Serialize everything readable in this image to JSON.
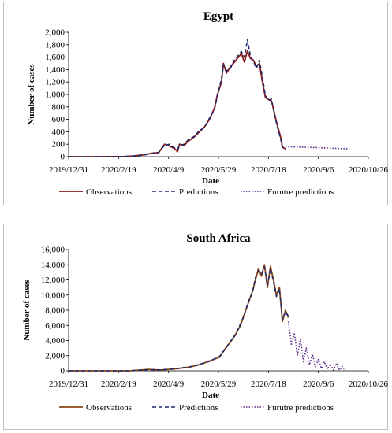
{
  "chart_data": [
    {
      "type": "line",
      "title": "Egypt",
      "xlabel": "Date",
      "ylabel": "Number of cases",
      "ylim": [
        0,
        2000
      ],
      "yticks": [
        "0",
        "200",
        "400",
        "600",
        "800",
        "1,000",
        "1,200",
        "1,400",
        "1,600",
        "1,800",
        "2,000"
      ],
      "xticks": [
        "2019/12/31",
        "2020/2/19",
        "2020/4/9",
        "2020/5/29",
        "2020/7/18",
        "2020/9/6",
        "2020/10/26"
      ],
      "xrange": [
        "2019-12-31",
        "2020-10-26"
      ],
      "grid": false,
      "legend_position": "bottom",
      "series": [
        {
          "name": "Observations",
          "color": "#8b1a1a",
          "style": "solid",
          "x": [
            "2019-12-31",
            "2020-01-31",
            "2020-02-25",
            "2020-03-05",
            "2020-03-15",
            "2020-03-25",
            "2020-03-30",
            "2020-04-05",
            "2020-04-10",
            "2020-04-15",
            "2020-04-18",
            "2020-04-20",
            "2020-04-25",
            "2020-04-28",
            "2020-05-05",
            "2020-05-10",
            "2020-05-15",
            "2020-05-20",
            "2020-05-25",
            "2020-05-28",
            "2020-06-01",
            "2020-06-03",
            "2020-06-06",
            "2020-06-10",
            "2020-06-14",
            "2020-06-18",
            "2020-06-21",
            "2020-06-24",
            "2020-06-27",
            "2020-06-30",
            "2020-07-03",
            "2020-07-06",
            "2020-07-09",
            "2020-07-12",
            "2020-07-15",
            "2020-07-18",
            "2020-07-21",
            "2020-07-24",
            "2020-07-27",
            "2020-07-30",
            "2020-08-01",
            "2020-08-04"
          ],
          "y": [
            0,
            0,
            2,
            10,
            30,
            60,
            60,
            200,
            170,
            130,
            80,
            200,
            180,
            240,
            320,
            400,
            480,
            600,
            780,
            1000,
            1200,
            1500,
            1340,
            1450,
            1520,
            1600,
            1660,
            1520,
            1700,
            1580,
            1550,
            1450,
            1500,
            1200,
            950,
            920,
            900,
            700,
            500,
            330,
            160,
            120
          ]
        },
        {
          "name": "Predictions",
          "color": "#1f2a6b",
          "style": "dashed",
          "x": [
            "2019-12-31",
            "2020-01-31",
            "2020-02-25",
            "2020-03-05",
            "2020-03-15",
            "2020-03-25",
            "2020-03-30",
            "2020-04-05",
            "2020-04-10",
            "2020-04-15",
            "2020-04-18",
            "2020-04-20",
            "2020-04-25",
            "2020-04-28",
            "2020-05-05",
            "2020-05-10",
            "2020-05-15",
            "2020-05-20",
            "2020-05-25",
            "2020-05-28",
            "2020-06-01",
            "2020-06-03",
            "2020-06-06",
            "2020-06-10",
            "2020-06-14",
            "2020-06-18",
            "2020-06-21",
            "2020-06-24",
            "2020-06-27",
            "2020-06-30",
            "2020-07-03",
            "2020-07-06",
            "2020-07-09",
            "2020-07-12",
            "2020-07-15",
            "2020-07-18",
            "2020-07-21",
            "2020-07-24",
            "2020-07-27",
            "2020-07-30",
            "2020-08-01",
            "2020-08-04"
          ],
          "y": [
            0,
            0,
            2,
            12,
            25,
            55,
            70,
            180,
            200,
            140,
            120,
            180,
            200,
            260,
            330,
            420,
            470,
            620,
            760,
            980,
            1250,
            1480,
            1380,
            1420,
            1560,
            1630,
            1690,
            1600,
            1880,
            1620,
            1530,
            1420,
            1550,
            1280,
            980,
            900,
            930,
            680,
            480,
            300,
            150,
            130
          ]
        },
        {
          "name": "Furutre predictions",
          "color": "#5a2a8a",
          "style": "dotted",
          "x": [
            "2020-08-04",
            "2020-08-20",
            "2020-09-05",
            "2020-09-20",
            "2020-10-05"
          ],
          "y": [
            160,
            155,
            145,
            135,
            125
          ]
        }
      ]
    },
    {
      "type": "line",
      "title": "South Africa",
      "xlabel": "Date",
      "ylabel": "Number of cases",
      "ylim": [
        0,
        16000
      ],
      "yticks": [
        "0",
        "2,000",
        "4,000",
        "6,000",
        "8,000",
        "10,000",
        "12,000",
        "14,000",
        "16,000"
      ],
      "xticks": [
        "2019/12/31",
        "2020/2/19",
        "2020/4/9",
        "2020/5/29",
        "2020/7/18",
        "2020/9/6",
        "2020/10/26"
      ],
      "xrange": [
        "2019-12-31",
        "2020-10-26"
      ],
      "grid": false,
      "legend_position": "bottom",
      "series": [
        {
          "name": "Observations",
          "color": "#8b4513",
          "style": "solid",
          "x": [
            "2019-12-31",
            "2020-03-01",
            "2020-03-20",
            "2020-04-01",
            "2020-04-15",
            "2020-04-30",
            "2020-05-10",
            "2020-05-20",
            "2020-05-30",
            "2020-06-05",
            "2020-06-10",
            "2020-06-15",
            "2020-06-20",
            "2020-06-24",
            "2020-06-28",
            "2020-07-02",
            "2020-07-05",
            "2020-07-08",
            "2020-07-11",
            "2020-07-14",
            "2020-07-17",
            "2020-07-20",
            "2020-07-23",
            "2020-07-26",
            "2020-07-29",
            "2020-08-01",
            "2020-08-04",
            "2020-08-07"
          ],
          "y": [
            0,
            0,
            200,
            100,
            250,
            500,
            800,
            1300,
            1800,
            3000,
            3800,
            4800,
            6000,
            7500,
            9000,
            10500,
            12000,
            13500,
            12500,
            14000,
            11000,
            13800,
            12000,
            10000,
            11000,
            6500,
            8000,
            7000
          ]
        },
        {
          "name": "Predictions",
          "color": "#1f2a6b",
          "style": "dashed",
          "x": [
            "2019-12-31",
            "2020-03-01",
            "2020-03-20",
            "2020-04-01",
            "2020-04-15",
            "2020-04-30",
            "2020-05-10",
            "2020-05-20",
            "2020-05-30",
            "2020-06-05",
            "2020-06-10",
            "2020-06-15",
            "2020-06-20",
            "2020-06-24",
            "2020-06-28",
            "2020-07-02",
            "2020-07-05",
            "2020-07-08",
            "2020-07-11",
            "2020-07-14",
            "2020-07-17",
            "2020-07-20",
            "2020-07-23",
            "2020-07-26",
            "2020-07-29",
            "2020-08-01",
            "2020-08-04",
            "2020-08-07"
          ],
          "y": [
            0,
            0,
            150,
            120,
            280,
            520,
            850,
            1250,
            1900,
            2900,
            3900,
            4700,
            6200,
            7400,
            9200,
            10300,
            12300,
            13200,
            12800,
            13700,
            11300,
            13500,
            11800,
            9800,
            10800,
            6800,
            7800,
            7200
          ]
        },
        {
          "name": "Furutre predictions",
          "color": "#5a2a8a",
          "style": "dotted",
          "x": [
            "2020-08-07",
            "2020-08-10",
            "2020-08-13",
            "2020-08-16",
            "2020-08-19",
            "2020-08-22",
            "2020-08-25",
            "2020-08-28",
            "2020-08-31",
            "2020-09-03",
            "2020-09-06",
            "2020-09-09",
            "2020-09-12",
            "2020-09-15",
            "2020-09-18",
            "2020-09-21",
            "2020-09-24",
            "2020-09-27",
            "2020-09-30",
            "2020-10-03"
          ],
          "y": [
            6500,
            3500,
            5000,
            2000,
            4200,
            1200,
            3000,
            800,
            2200,
            500,
            1500,
            300,
            1200,
            200,
            900,
            100,
            1000,
            100,
            600,
            0
          ]
        }
      ]
    }
  ]
}
